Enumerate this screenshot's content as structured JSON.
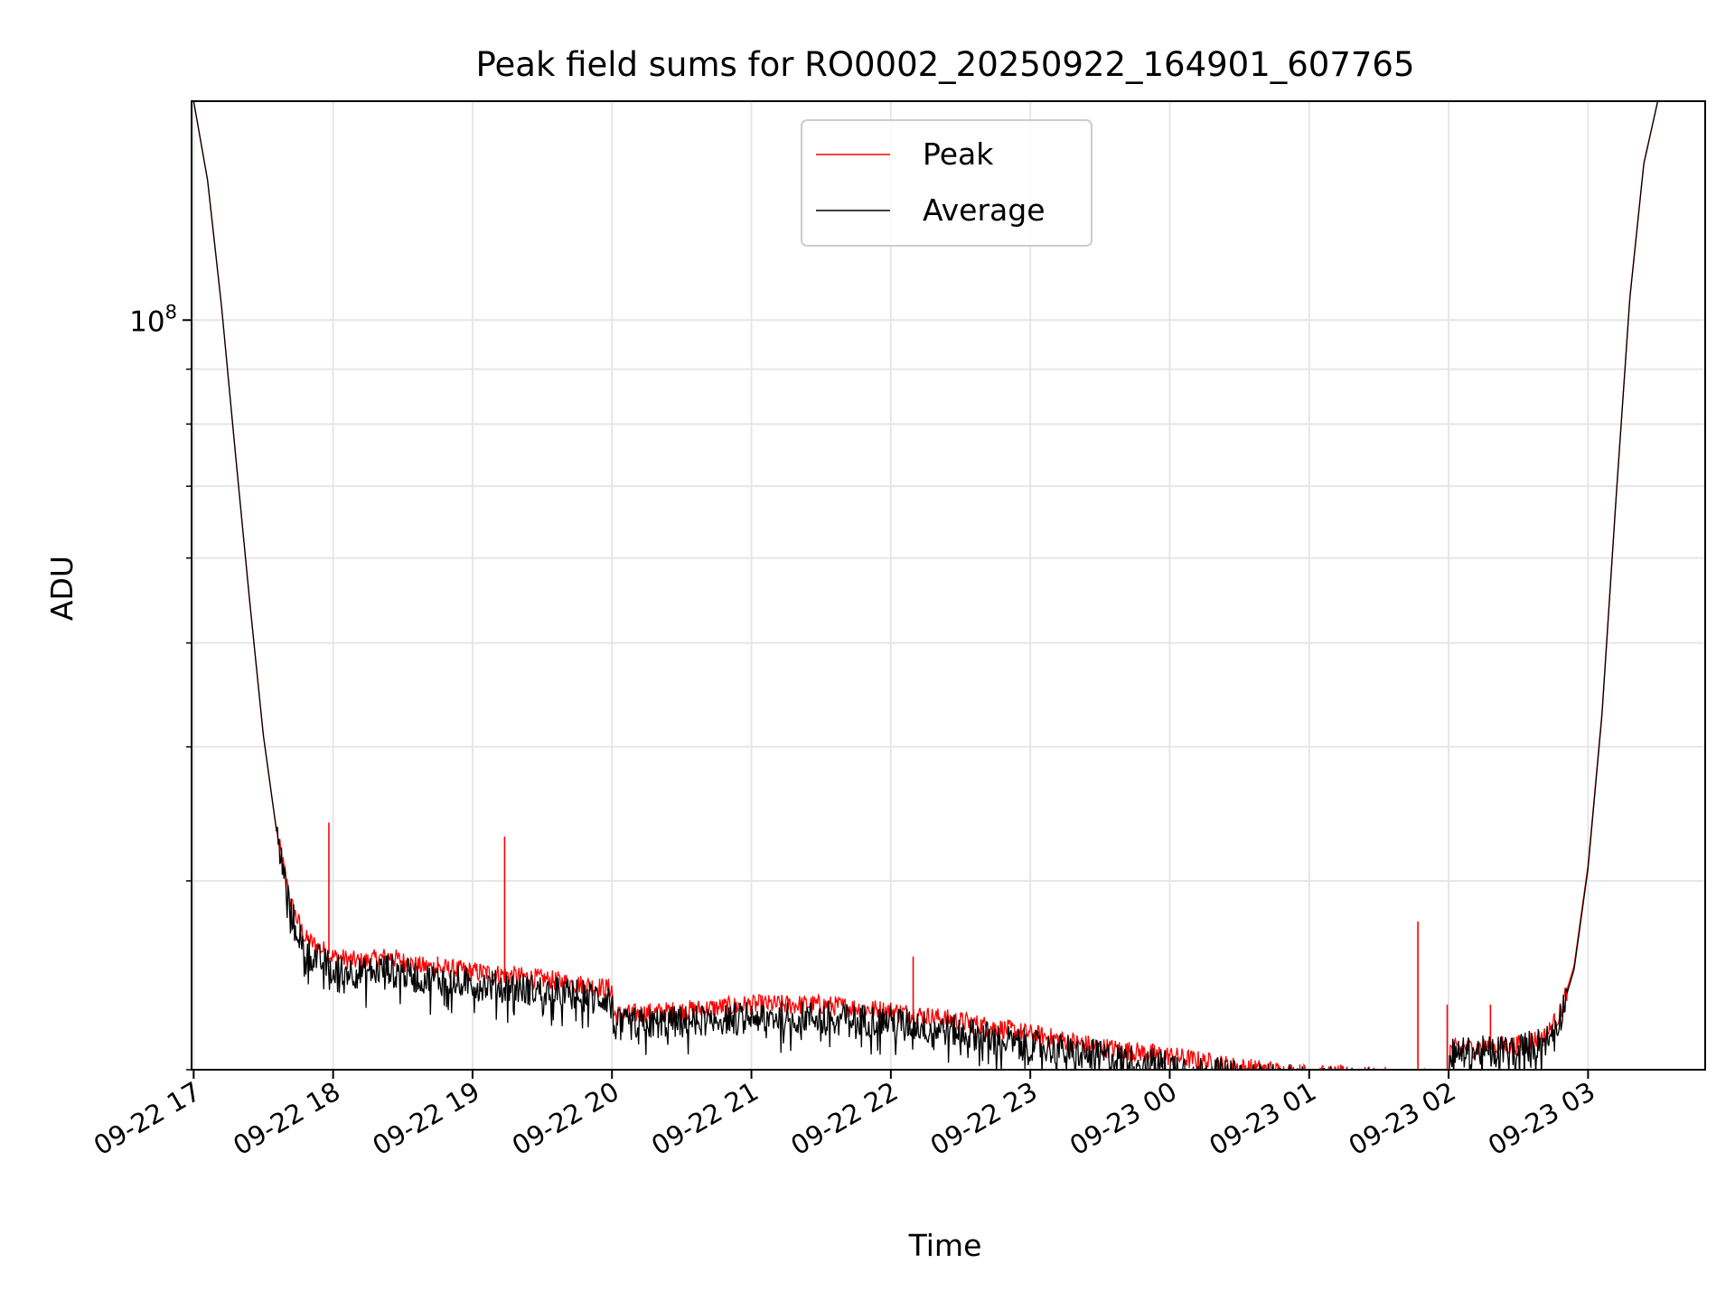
{
  "chart_data": {
    "type": "line",
    "title": "Peak field sums for RO0002_20250922_164901_607765",
    "xlabel": "Time",
    "ylabel": "ADU",
    "yscale": "log",
    "ylim": [
      20000000,
      160000000
    ],
    "y_major_tick": {
      "value": 100000000,
      "label_base": "10",
      "label_exp": "8"
    },
    "y_minor_ticks": [
      20000000,
      30000000,
      40000000,
      50000000,
      60000000,
      70000000,
      80000000,
      90000000
    ],
    "xlim_hours": [
      -0.015,
      10.84
    ],
    "xticks": [
      {
        "h": 0,
        "label": "09-22 17"
      },
      {
        "h": 1,
        "label": "09-22 18"
      },
      {
        "h": 2,
        "label": "09-22 19"
      },
      {
        "h": 3,
        "label": "09-22 20"
      },
      {
        "h": 4,
        "label": "09-22 21"
      },
      {
        "h": 5,
        "label": "09-22 22"
      },
      {
        "h": 6,
        "label": "09-22 23"
      },
      {
        "h": 7,
        "label": "09-23 00"
      },
      {
        "h": 8,
        "label": "09-23 01"
      },
      {
        "h": 9,
        "label": "09-23 02"
      },
      {
        "h": 10,
        "label": "09-23 03"
      }
    ],
    "grid": true,
    "legend": {
      "position": "upper-center",
      "entries": [
        "Peak",
        "Average"
      ]
    },
    "series": [
      {
        "name": "Peak",
        "color": "#ff0000",
        "baseline": [
          [
            0,
            160000000
          ],
          [
            0.1,
            135000000
          ],
          [
            0.2,
            103000000
          ],
          [
            0.3,
            75000000
          ],
          [
            0.4,
            55000000
          ],
          [
            0.5,
            41000000
          ],
          [
            0.6,
            33000000
          ],
          [
            0.7,
            28500000
          ],
          [
            0.8,
            26500000
          ],
          [
            0.9,
            26000000
          ],
          [
            1.0,
            25500000
          ],
          [
            1.2,
            25200000
          ],
          [
            1.4,
            25500000
          ],
          [
            1.6,
            25000000
          ],
          [
            2.0,
            24700000
          ],
          [
            2.5,
            24300000
          ],
          [
            3.0,
            23800000
          ],
          [
            3.01,
            22500000
          ],
          [
            3.5,
            22700000
          ],
          [
            4.0,
            23000000
          ],
          [
            4.5,
            23000000
          ],
          [
            5.0,
            22700000
          ],
          [
            5.5,
            22200000
          ],
          [
            6.0,
            21600000
          ],
          [
            6.5,
            21000000
          ],
          [
            7.0,
            20600000
          ],
          [
            7.5,
            20100000
          ],
          [
            8.0,
            19800000
          ],
          [
            8.5,
            19700000
          ],
          [
            9.0,
            19600000
          ],
          [
            9.01,
            20900000
          ],
          [
            9.5,
            21100000
          ],
          [
            9.7,
            21500000
          ],
          [
            9.8,
            22600000
          ],
          [
            9.9,
            25000000
          ],
          [
            10.0,
            31000000
          ],
          [
            10.1,
            43000000
          ],
          [
            10.2,
            68000000
          ],
          [
            10.3,
            105000000
          ],
          [
            10.4,
            140000000
          ],
          [
            10.5,
            160000000
          ]
        ],
        "spikes": [
          [
            0.97,
            34000000
          ],
          [
            2.23,
            33000000
          ],
          [
            5.16,
            25500000
          ],
          [
            8.78,
            27500000
          ],
          [
            8.99,
            23000000
          ],
          [
            1.75,
            25500000
          ],
          [
            9.3,
            23000000
          ]
        ]
      },
      {
        "name": "Average",
        "color": "#000000",
        "baseline": [
          [
            0,
            160000000
          ],
          [
            0.1,
            135000000
          ],
          [
            0.2,
            103000000
          ],
          [
            0.3,
            75000000
          ],
          [
            0.4,
            55000000
          ],
          [
            0.5,
            41000000
          ],
          [
            0.6,
            33000000
          ],
          [
            0.7,
            28000000
          ],
          [
            0.8,
            25900000
          ],
          [
            0.9,
            25300000
          ],
          [
            1.0,
            24900000
          ],
          [
            1.2,
            24600000
          ],
          [
            1.4,
            24900000
          ],
          [
            1.6,
            24400000
          ],
          [
            2.0,
            24100000
          ],
          [
            2.5,
            23700000
          ],
          [
            3.0,
            23300000
          ],
          [
            3.01,
            22000000
          ],
          [
            3.5,
            22200000
          ],
          [
            4.0,
            22400000
          ],
          [
            4.5,
            22400000
          ],
          [
            5.0,
            22200000
          ],
          [
            5.5,
            21700000
          ],
          [
            6.0,
            21100000
          ],
          [
            6.5,
            20600000
          ],
          [
            7.0,
            20200000
          ],
          [
            7.5,
            19700000
          ],
          [
            8.0,
            19500000
          ],
          [
            8.5,
            19400000
          ],
          [
            9.0,
            19300000
          ],
          [
            9.01,
            20700000
          ],
          [
            9.5,
            20900000
          ],
          [
            9.7,
            21300000
          ],
          [
            9.8,
            22400000
          ],
          [
            9.9,
            24800000
          ],
          [
            10.0,
            30800000
          ],
          [
            10.1,
            42800000
          ],
          [
            10.2,
            67800000
          ],
          [
            10.3,
            104800000
          ],
          [
            10.4,
            139800000
          ],
          [
            10.5,
            160000000
          ]
        ],
        "spikes": []
      }
    ]
  }
}
